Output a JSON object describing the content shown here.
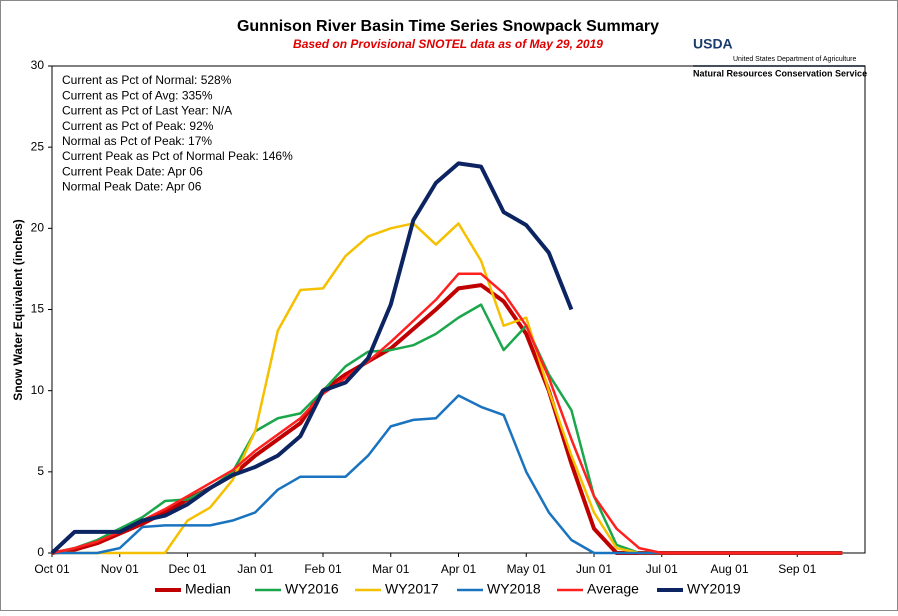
{
  "chart_data": {
    "type": "line",
    "title": "Gunnison River Basin Time Series Snowpack Summary",
    "subtitle": "Based on Provisional SNOTEL data as of May 29, 2019",
    "y_label": "Snow Water Equivalent (inches)",
    "annotations": [
      "Current  as Pct of Normal: 528%",
      "Current  as Pct of Avg: 335%",
      "Current  as Pct of Last Year: N/A",
      "Current  as Pct of Peak: 92%",
      "Normal  as Pct of Peak: 17%",
      "Current  Peak as Pct of Normal  Peak: 146%",
      "Current  Peak Date: Apr 06",
      "Normal Peak Date: Apr 06"
    ],
    "categories": [
      "Oct 01",
      null,
      null,
      "Nov 01",
      null,
      null,
      "Dec 01",
      null,
      null,
      "Jan 01",
      null,
      null,
      "Feb 01",
      null,
      null,
      "Mar 01",
      null,
      null,
      "Apr 01",
      null,
      null,
      "May 01",
      null,
      null,
      "Jun 01",
      null,
      null,
      "Jul 01",
      null,
      null,
      "Aug 01",
      null,
      null,
      "Sep 01",
      null,
      null
    ],
    "ylim": [
      0,
      30
    ],
    "yticks": [
      0,
      5,
      10,
      15,
      20,
      25,
      30
    ],
    "grid": false,
    "series": [
      {
        "name": "Median",
        "color": "#c00000",
        "line_width": 4,
        "values": [
          0,
          0.2,
          0.6,
          1.2,
          1.8,
          2.5,
          3.3,
          4.0,
          4.8,
          6.0,
          7.0,
          8.0,
          10.0,
          11.0,
          11.8,
          12.6,
          13.8,
          15.0,
          16.3,
          16.5,
          15.5,
          13.5,
          10.0,
          5.5,
          1.5,
          0,
          0,
          0,
          0,
          0,
          0,
          0,
          0,
          0,
          0,
          0
        ]
      },
      {
        "name": "WY2016",
        "color": "#1aa64a",
        "line_width": 2.5,
        "values": [
          0,
          0.3,
          0.8,
          1.5,
          2.2,
          3.2,
          3.3,
          4.0,
          5.0,
          7.5,
          8.3,
          8.6,
          10.0,
          11.5,
          12.4,
          12.5,
          12.8,
          13.5,
          14.5,
          15.3,
          12.5,
          14.0,
          11.0,
          8.8,
          3.5,
          0.5,
          0,
          0,
          0,
          0,
          0,
          0,
          0,
          0,
          0,
          0
        ]
      },
      {
        "name": "WY2017",
        "color": "#f5c000",
        "line_width": 2.5,
        "values": [
          0,
          0,
          0,
          0,
          0,
          0,
          2.0,
          2.8,
          4.5,
          7.5,
          13.7,
          16.2,
          16.3,
          18.3,
          19.5,
          20.0,
          20.3,
          19.0,
          20.3,
          18.0,
          14.0,
          14.5,
          10.0,
          6.0,
          2.5,
          0.3,
          0,
          0,
          0,
          0,
          0,
          0,
          0,
          0,
          0,
          0
        ]
      },
      {
        "name": "WY2018",
        "color": "#1a73bf",
        "line_width": 2.5,
        "values": [
          0,
          0,
          0,
          0.3,
          1.6,
          1.7,
          1.7,
          1.7,
          2.0,
          2.5,
          3.9,
          4.7,
          4.7,
          4.7,
          6.0,
          7.8,
          8.2,
          8.3,
          9.7,
          9.0,
          8.5,
          5.0,
          2.5,
          0.8,
          0,
          0,
          0,
          0,
          0,
          0,
          0,
          0,
          0,
          0,
          0,
          0
        ]
      },
      {
        "name": "Average",
        "color": "#ff2020",
        "line_width": 2.5,
        "values": [
          0,
          0.3,
          0.7,
          1.3,
          2.0,
          2.7,
          3.5,
          4.3,
          5.1,
          6.3,
          7.3,
          8.3,
          9.8,
          10.8,
          11.8,
          13.0,
          14.3,
          15.6,
          17.2,
          17.2,
          16.0,
          14.0,
          10.8,
          7.0,
          3.5,
          1.5,
          0.3,
          0,
          0,
          0,
          0,
          0,
          0,
          0,
          0,
          0
        ]
      },
      {
        "name": "WY2019",
        "color": "#0c2461",
        "line_width": 4,
        "values": [
          0,
          1.3,
          1.3,
          1.3,
          2.0,
          2.3,
          3.0,
          4.0,
          4.8,
          5.3,
          6.0,
          7.2,
          10.0,
          10.5,
          12.0,
          15.3,
          20.5,
          22.8,
          24.0,
          23.8,
          21.0,
          20.2,
          18.5,
          15.0,
          null,
          null,
          null,
          null,
          null,
          null,
          null,
          null,
          null,
          null,
          null,
          null
        ]
      }
    ]
  },
  "logo": {
    "mark": "USDA",
    "department": "United States Department of Agriculture",
    "service": "Natural Resources Conservation Service"
  }
}
